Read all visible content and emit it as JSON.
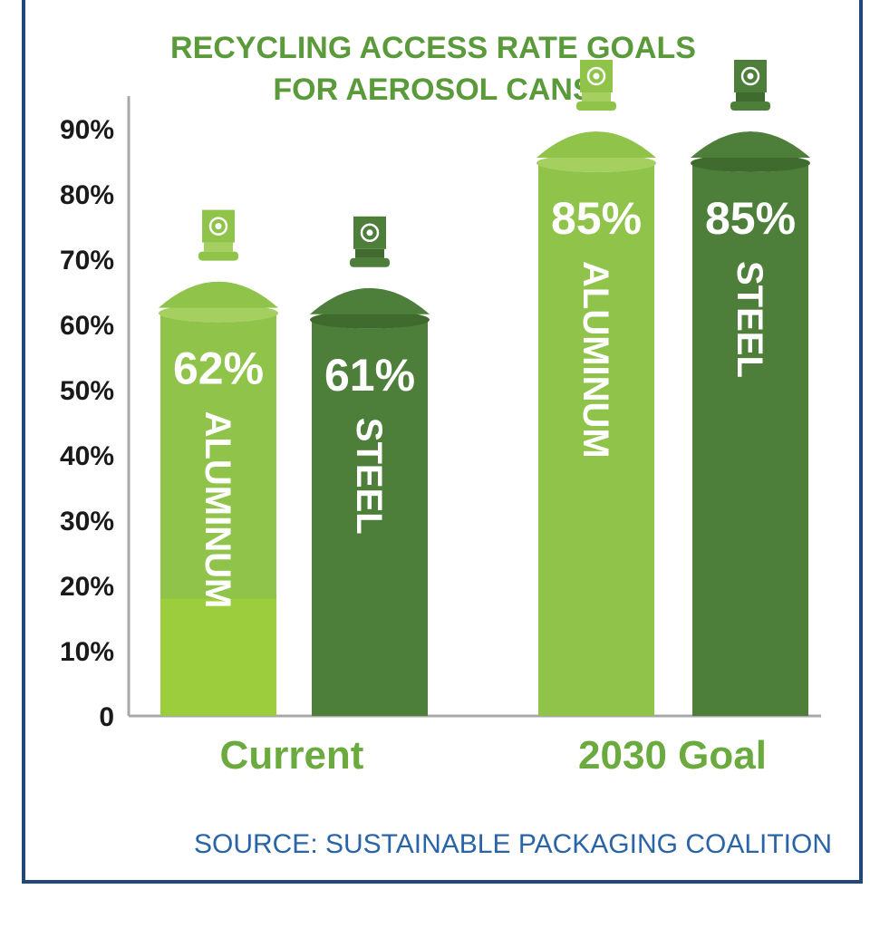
{
  "chart_data": {
    "type": "bar",
    "title_lines": [
      "RECYCLING ACCESS RATE GOALS",
      "FOR AEROSOL CANS"
    ],
    "categories": [
      "Current",
      "2030 Goal"
    ],
    "series": [
      {
        "name": "ALUMINUM",
        "values": [
          62,
          85
        ],
        "value_labels": [
          "62%",
          "85%"
        ]
      },
      {
        "name": "STEEL",
        "values": [
          61,
          85
        ],
        "value_labels": [
          "61%",
          "85%"
        ]
      }
    ],
    "yticks": [
      "0",
      "10%",
      "20%",
      "30%",
      "40%",
      "50%",
      "60%",
      "70%",
      "80%",
      "90%"
    ],
    "ylim": [
      0,
      90
    ],
    "grid": false,
    "legend": "none"
  },
  "source": "SOURCE: SUSTAINABLE PACKAGING COALITION",
  "colors": {
    "aluminum": "#8fc34a",
    "aluminum_light": "#a5cf5f",
    "steel": "#4e7f3a",
    "steel_dark": "#3f6c2e",
    "title": "#5a9a3a",
    "category": "#6aaa3e",
    "source": "#2a64a8",
    "frame": "#20497a"
  }
}
